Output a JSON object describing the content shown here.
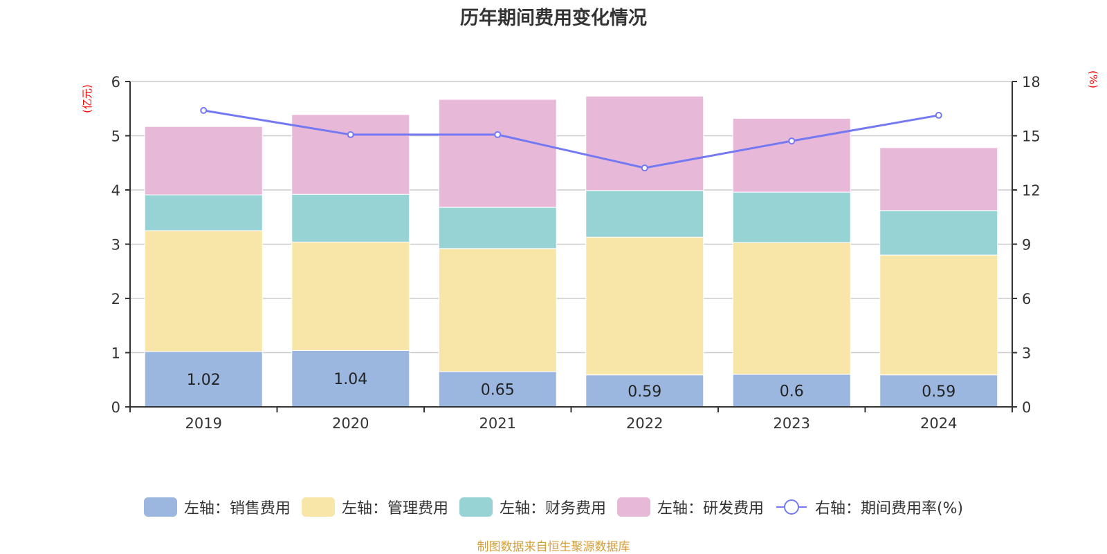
{
  "chart_data": {
    "type": "bar",
    "stacked": true,
    "title": "历年期间费用变化情况",
    "categories": [
      "2019",
      "2020",
      "2021",
      "2022",
      "2023",
      "2024"
    ],
    "left_axis": {
      "label": "(亿元)",
      "ylim": [
        0,
        6
      ],
      "ticks": [
        "0",
        "1",
        "2",
        "3",
        "4",
        "5",
        "6"
      ]
    },
    "right_axis": {
      "label": "(%)",
      "ylim": [
        0,
        18
      ],
      "ticks": [
        "0",
        "3",
        "6",
        "9",
        "12",
        "15",
        "18"
      ]
    },
    "series": [
      {
        "name": "左轴：销售费用",
        "type": "bar",
        "axis": "left",
        "color": "#9bb7e0",
        "values": [
          1.02,
          1.04,
          0.65,
          0.59,
          0.6,
          0.59
        ],
        "labels": [
          "1.02",
          "1.04",
          "0.65",
          "0.59",
          "0.6",
          "0.59"
        ]
      },
      {
        "name": "左轴：管理费用",
        "type": "bar",
        "axis": "left",
        "color": "#f8e6a8",
        "values": [
          2.23,
          2.0,
          2.27,
          2.54,
          2.43,
          2.21
        ]
      },
      {
        "name": "左轴：财务费用",
        "type": "bar",
        "axis": "left",
        "color": "#97d3d4",
        "values": [
          0.66,
          0.88,
          0.76,
          0.86,
          0.93,
          0.82
        ]
      },
      {
        "name": "左轴：研发费用",
        "type": "bar",
        "axis": "left",
        "color": "#e7b8d8",
        "values": [
          1.26,
          1.47,
          1.99,
          1.74,
          1.36,
          1.16
        ]
      },
      {
        "name": "右轴：期间费用率(%)",
        "type": "line",
        "axis": "right",
        "color": "#7479f2",
        "values": [
          16.4,
          15.06,
          15.06,
          13.22,
          14.71,
          16.13
        ]
      }
    ],
    "grid": true,
    "legend_position": "bottom"
  },
  "source": "制图数据来自恒生聚源数据库"
}
